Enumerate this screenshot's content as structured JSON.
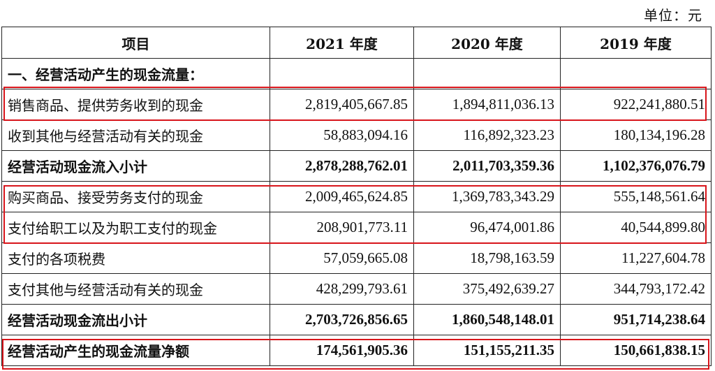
{
  "unit_label": "单位：元",
  "headers": [
    "项目",
    "2021 年度",
    "2020 年度",
    "2019 年度"
  ],
  "rows": [
    {
      "label": "一、经营活动产生的现金流量：",
      "v2021": "",
      "v2020": "",
      "v2019": "",
      "bold": true
    },
    {
      "label": "销售商品、提供劳务收到的现金",
      "v2021": "2,819,405,667.85",
      "v2020": "1,894,811,036.13",
      "v2019": "922,241,880.51",
      "bold": false
    },
    {
      "label": "收到其他与经营活动有关的现金",
      "v2021": "58,883,094.16",
      "v2020": "116,892,323.23",
      "v2019": "180,134,196.28",
      "bold": false
    },
    {
      "label": "经营活动现金流入小计",
      "v2021": "2,878,288,762.01",
      "v2020": "2,011,703,359.36",
      "v2019": "1,102,376,076.79",
      "bold": true
    },
    {
      "label": "购买商品、接受劳务支付的现金",
      "v2021": "2,009,465,624.85",
      "v2020": "1,369,783,343.29",
      "v2019": "555,148,561.64",
      "bold": false
    },
    {
      "label": "支付给职工以及为职工支付的现金",
      "v2021": "208,901,773.11",
      "v2020": "96,474,001.86",
      "v2019": "40,544,899.80",
      "bold": false
    },
    {
      "label": "支付的各项税费",
      "v2021": "57,059,665.08",
      "v2020": "18,798,163.59",
      "v2019": "11,227,604.78",
      "bold": false
    },
    {
      "label": "支付其他与经营活动有关的现金",
      "v2021": "428,299,793.61",
      "v2020": "375,492,639.27",
      "v2019": "344,793,172.42",
      "bold": false
    },
    {
      "label": "经营活动现金流出小计",
      "v2021": "2,703,726,856.65",
      "v2020": "1,860,548,148.01",
      "v2019": "951,714,238.64",
      "bold": true
    },
    {
      "label": "经营活动产生的现金流量净额",
      "v2021": "174,561,905.36",
      "v2020": "151,155,211.35",
      "v2019": "150,661,838.15",
      "bold": true
    }
  ],
  "highlight_color": "#d8151b"
}
